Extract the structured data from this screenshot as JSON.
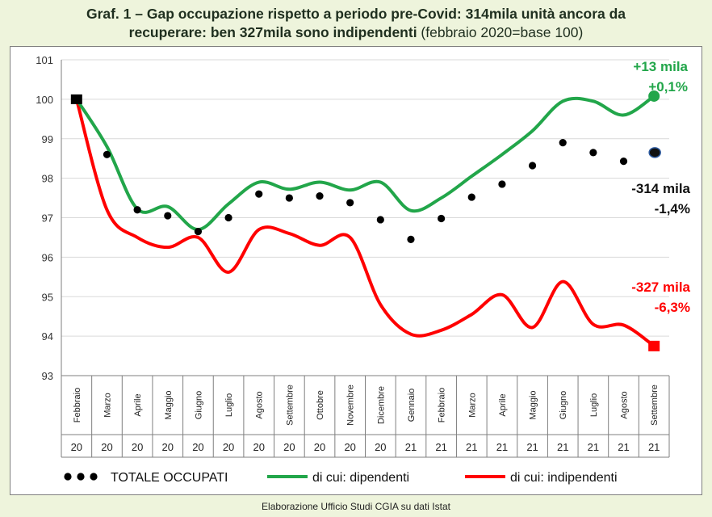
{
  "title": {
    "line1": "Graf. 1 – Gap occupazione rispetto a periodo pre-Covid: 314mila unità ancora da",
    "line2_bold": "recuperare: ben 327mila sono indipendenti",
    "line2_normal": " (febbraio 2020=base 100)"
  },
  "source": "Elaborazione Ufficio Studi CGIA su dati Istat",
  "colors": {
    "totale": "#000000",
    "dipendenti": "#22a64a",
    "indipendenti": "#ff0000",
    "grid": "#d9d9d9",
    "axis": "#7f7f7f"
  },
  "chart_data": {
    "type": "line",
    "title": "Graf. 1 – Gap occupazione rispetto a periodo pre-Covid: 314mila unità ancora da recuperare: ben 327mila sono indipendenti (febbraio 2020=base 100)",
    "categories": [
      "Febbraio",
      "Marzo",
      "Aprile",
      "Maggio",
      "Giugno",
      "Luglio",
      "Agosto",
      "Settembre",
      "Ottobre",
      "Novembre",
      "Dicembre",
      "Gennaio",
      "Febbraio",
      "Marzo",
      "Aprile",
      "Maggio",
      "Giugno",
      "Luglio",
      "Agosto",
      "Settembre"
    ],
    "years": [
      "20",
      "20",
      "20",
      "20",
      "20",
      "20",
      "20",
      "20",
      "20",
      "20",
      "20",
      "21",
      "21",
      "21",
      "21",
      "21",
      "21",
      "21",
      "21",
      "21"
    ],
    "ylim": [
      93,
      101
    ],
    "yticks": [
      93,
      94,
      95,
      96,
      97,
      98,
      99,
      100,
      101
    ],
    "grid": true,
    "legend_position": "bottom",
    "series": [
      {
        "name": "TOTALE OCCUPATI",
        "style": "dotted",
        "values": [
          100,
          98.6,
          97.2,
          97.05,
          96.65,
          97.0,
          97.6,
          97.5,
          97.55,
          97.38,
          96.95,
          96.45,
          96.98,
          97.52,
          97.85,
          98.32,
          98.9,
          98.65,
          98.43,
          98.65
        ]
      },
      {
        "name": "di cui: dipendenti",
        "style": "solid",
        "values": [
          100,
          98.8,
          97.22,
          97.28,
          96.7,
          97.35,
          97.9,
          97.72,
          97.9,
          97.7,
          97.9,
          97.18,
          97.5,
          98.05,
          98.6,
          99.2,
          99.95,
          99.95,
          99.6,
          100.08
        ]
      },
      {
        "name": "di cui: indipendenti",
        "style": "solid",
        "values": [
          100,
          97.2,
          96.5,
          96.25,
          96.5,
          95.62,
          96.7,
          96.6,
          96.3,
          96.5,
          94.8,
          94.05,
          94.15,
          94.55,
          95.05,
          94.22,
          95.38,
          94.3,
          94.28,
          93.75
        ]
      }
    ],
    "annotations": [
      {
        "series": 1,
        "lines": [
          "+13 mila",
          "+0,1%"
        ]
      },
      {
        "series": 0,
        "lines": [
          "-314 mila",
          "-1,4%"
        ]
      },
      {
        "series": 2,
        "lines": [
          "-327 mila",
          "-6,3%"
        ]
      }
    ]
  }
}
